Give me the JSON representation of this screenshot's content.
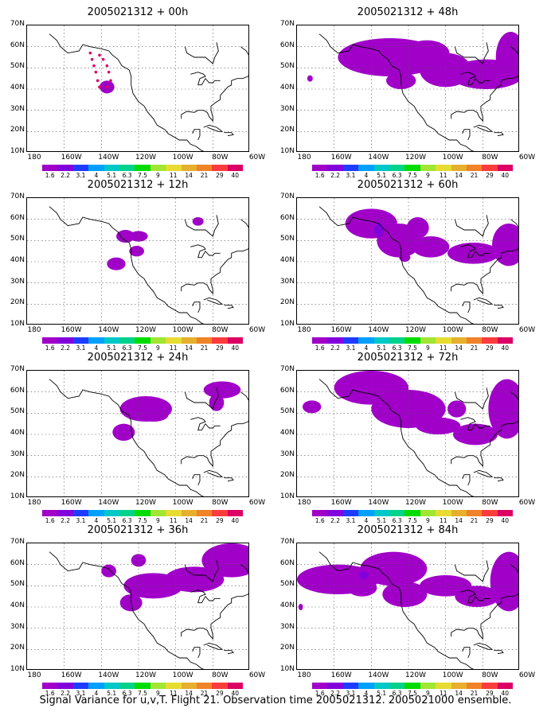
{
  "figure": {
    "caption": "Signal Variance for u,v,T. Flight 21. Observation time 2005021312. 2005021000 ensemble."
  },
  "axes": {
    "y_ticks": [
      "70N",
      "60N",
      "50N",
      "40N",
      "30N",
      "20N",
      "10N"
    ],
    "x_ticks": [
      "180",
      "160W",
      "140W",
      "120W",
      "100W",
      "80W",
      "60W"
    ]
  },
  "colorbar": {
    "labels": [
      "1.6",
      "2.2",
      "3.1",
      "4",
      "5.1",
      "6.3",
      "7.5",
      "9",
      "11",
      "14",
      "21",
      "29",
      "40"
    ],
    "colors": [
      "#a000c8",
      "#8200dc",
      "#1e3cff",
      "#00a0ff",
      "#00c8c8",
      "#00d28c",
      "#00dc00",
      "#a0e632",
      "#e6dc32",
      "#e6af2d",
      "#f08228",
      "#fa3c3c",
      "#dc0064"
    ]
  },
  "panels": [
    {
      "title": "2005021312 + 00h"
    },
    {
      "title": "2005021312 + 48h"
    },
    {
      "title": "2005021312 + 12h"
    },
    {
      "title": "2005021312 + 60h"
    },
    {
      "title": "2005021312 + 24h"
    },
    {
      "title": "2005021312 + 72h"
    },
    {
      "title": "2005021312 + 36h"
    },
    {
      "title": "2005021312 + 84h"
    }
  ],
  "chart_data": {
    "type": "heatmap",
    "lon_range": [
      -180,
      -60
    ],
    "lat_range": [
      10,
      70
    ],
    "grid": true,
    "levels": [
      1.6,
      2.2,
      3.1,
      4,
      5.1,
      6.3,
      7.5,
      9,
      11,
      14,
      21,
      29,
      40
    ],
    "flight_track": {
      "panel": "2005021312 + 00h",
      "points": [
        [
          -146,
          57
        ],
        [
          -145,
          54
        ],
        [
          -144,
          51
        ],
        [
          -143,
          48
        ],
        [
          -142,
          44
        ],
        [
          -141,
          41
        ],
        [
          -137,
          41
        ],
        [
          -135,
          44
        ],
        [
          -136,
          48
        ],
        [
          -137,
          51
        ],
        [
          -139,
          54
        ],
        [
          -141,
          56
        ]
      ]
    }
  }
}
